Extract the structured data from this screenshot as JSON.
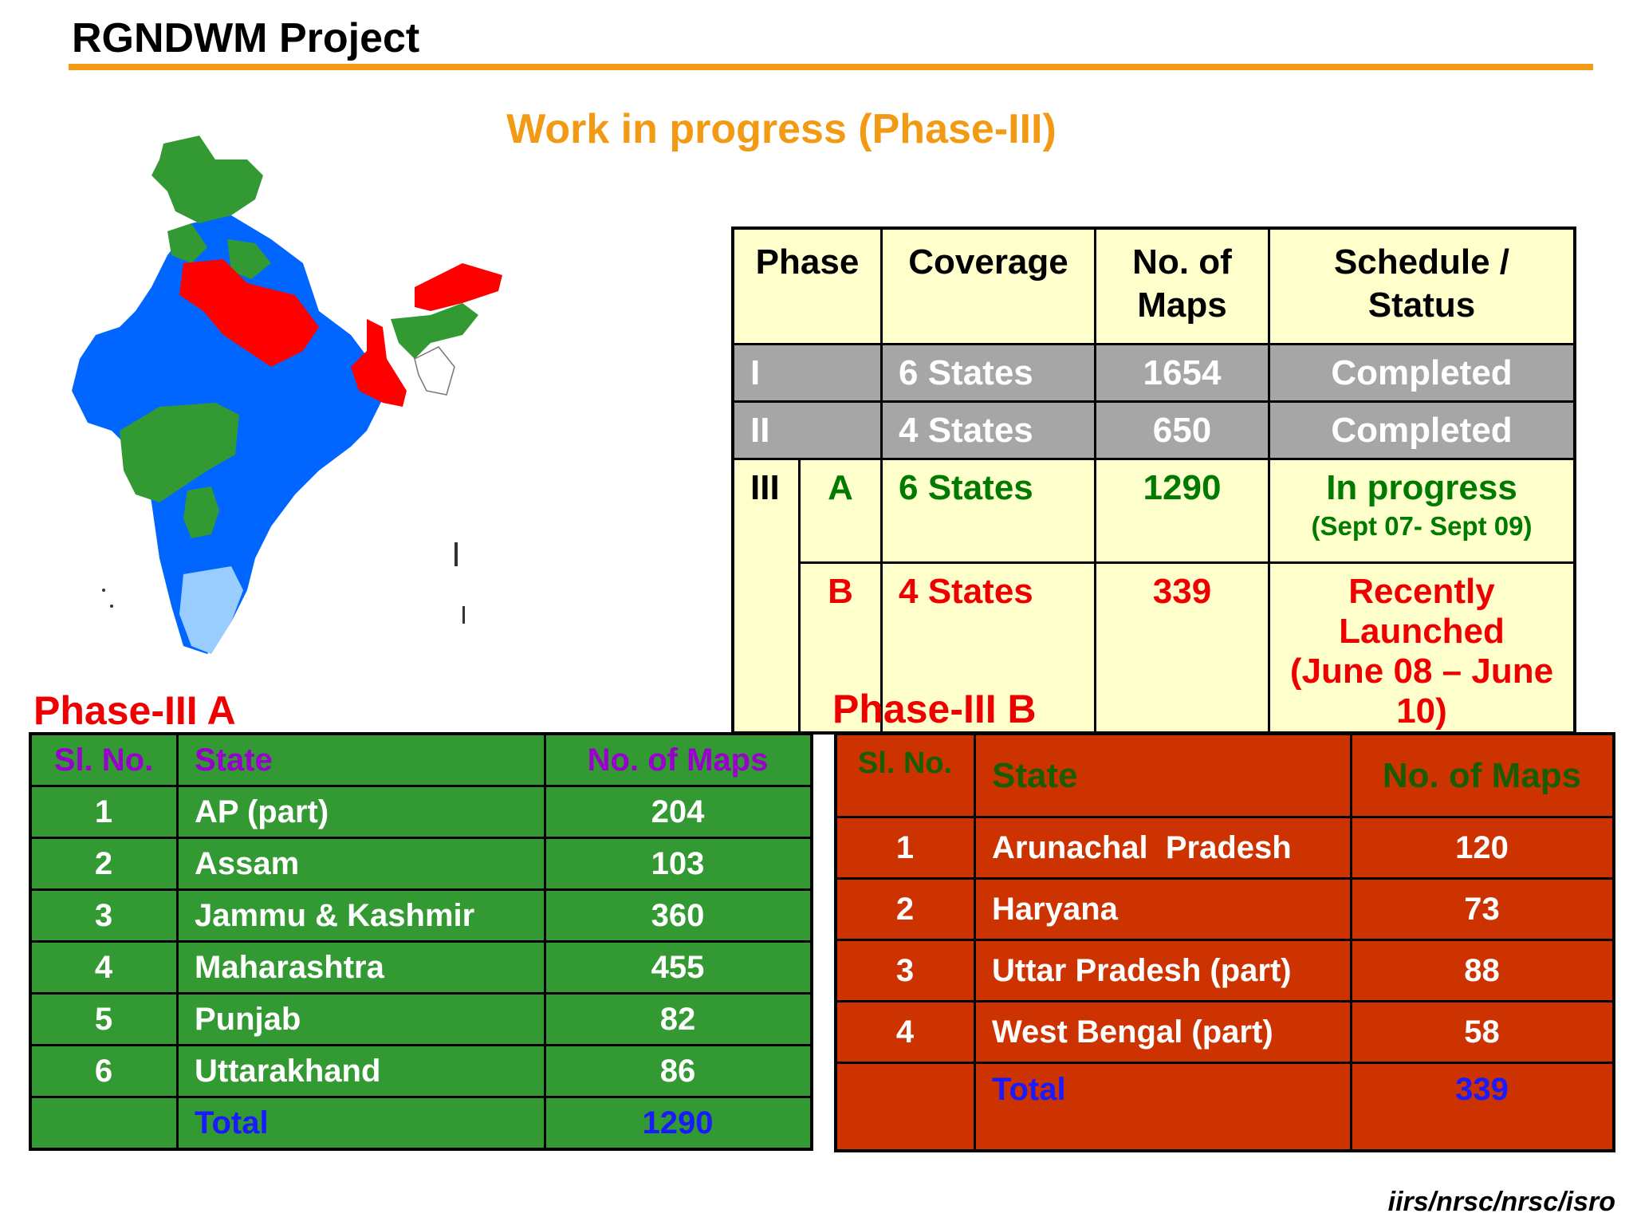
{
  "header": {
    "title": "RGNDWM Project",
    "subtitle": "Work in progress (Phase-III)"
  },
  "colors": {
    "accent_orange": "#f39a14",
    "phase_a_green": "#339933",
    "phase_b_red": "#cc3300",
    "map_blue": "#0066ff",
    "map_red": "#ff0000",
    "map_green": "#339933",
    "map_light_blue": "#99ccff"
  },
  "map": {
    "icon": "india-map-icon"
  },
  "phase_table": {
    "headers": [
      "Phase",
      "Coverage",
      "No. of Maps",
      "Schedule / Status"
    ],
    "rows": [
      {
        "phase": "I",
        "sub": "",
        "coverage": "6 States",
        "maps": "1654",
        "status": "Completed",
        "status_note": ""
      },
      {
        "phase": "II",
        "sub": "",
        "coverage": "4 States",
        "maps": "650",
        "status": "Completed",
        "status_note": ""
      },
      {
        "phase": "III",
        "sub": "A",
        "coverage": "6 States",
        "maps": "1290",
        "status": "In progress",
        "status_note": "(Sept 07- Sept 09)"
      },
      {
        "phase": "",
        "sub": "B",
        "coverage": "4 States",
        "maps": "339",
        "status": "Recently Launched",
        "status_note": "(June 08 – June 10)"
      }
    ]
  },
  "phase_a": {
    "title": "Phase-III A",
    "headers": [
      "Sl. No.",
      "State",
      "No. of Maps"
    ],
    "rows": [
      {
        "sl": "1",
        "state": "AP (part)",
        "maps": "204"
      },
      {
        "sl": "2",
        "state": "Assam",
        "maps": "103"
      },
      {
        "sl": "3",
        "state": "Jammu & Kashmir",
        "maps": "360"
      },
      {
        "sl": "4",
        "state": "Maharashtra",
        "maps": "455"
      },
      {
        "sl": "5",
        "state": "Punjab",
        "maps": "82"
      },
      {
        "sl": "6",
        "state": "Uttarakhand",
        "maps": "86"
      }
    ],
    "total_label": "Total",
    "total_value": "1290"
  },
  "phase_b": {
    "title": "Phase-III B",
    "headers": [
      "Sl. No.",
      "State",
      "No. of Maps"
    ],
    "rows": [
      {
        "sl": "1",
        "state": "Arunachal  Pradesh",
        "maps": "120"
      },
      {
        "sl": "2",
        "state": "Haryana",
        "maps": "73"
      },
      {
        "sl": "3",
        "state": "Uttar Pradesh (part)",
        "maps": "88"
      },
      {
        "sl": "4",
        "state": "West Bengal (part)",
        "maps": "58"
      }
    ],
    "total_label": "Total",
    "total_value": "339"
  },
  "footer": {
    "credit": "iirs/nrsc/nrsc/isro"
  }
}
